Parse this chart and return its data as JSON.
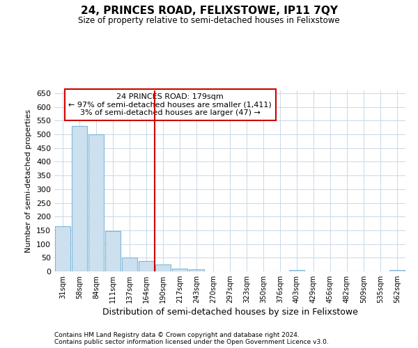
{
  "title": "24, PRINCES ROAD, FELIXSTOWE, IP11 7QY",
  "subtitle": "Size of property relative to semi-detached houses in Felixstowe",
  "xlabel": "Distribution of semi-detached houses by size in Felixstowe",
  "ylabel": "Number of semi-detached properties",
  "categories": [
    "31sqm",
    "58sqm",
    "84sqm",
    "111sqm",
    "137sqm",
    "164sqm",
    "190sqm",
    "217sqm",
    "243sqm",
    "270sqm",
    "297sqm",
    "323sqm",
    "350sqm",
    "376sqm",
    "403sqm",
    "429sqm",
    "456sqm",
    "482sqm",
    "509sqm",
    "535sqm",
    "562sqm"
  ],
  "values": [
    165,
    530,
    500,
    148,
    50,
    38,
    25,
    10,
    8,
    0,
    0,
    0,
    0,
    0,
    5,
    0,
    0,
    0,
    0,
    0,
    5
  ],
  "bar_color": "#cce0f0",
  "bar_edge_color": "#7db8d8",
  "property_line_x": 6.0,
  "annotation_text": "24 PRINCES ROAD: 179sqm\n← 97% of semi-detached houses are smaller (1,411)\n3% of semi-detached houses are larger (47) →",
  "annotation_box_color": "#ffffff",
  "annotation_box_edge": "#cc0000",
  "property_line_color": "#cc0000",
  "ylim": [
    0,
    660
  ],
  "yticks": [
    0,
    50,
    100,
    150,
    200,
    250,
    300,
    350,
    400,
    450,
    500,
    550,
    600,
    650
  ],
  "footer_line1": "Contains HM Land Registry data © Crown copyright and database right 2024.",
  "footer_line2": "Contains public sector information licensed under the Open Government Licence v3.0.",
  "bg_color": "#ffffff",
  "grid_color": "#c8d8e8"
}
